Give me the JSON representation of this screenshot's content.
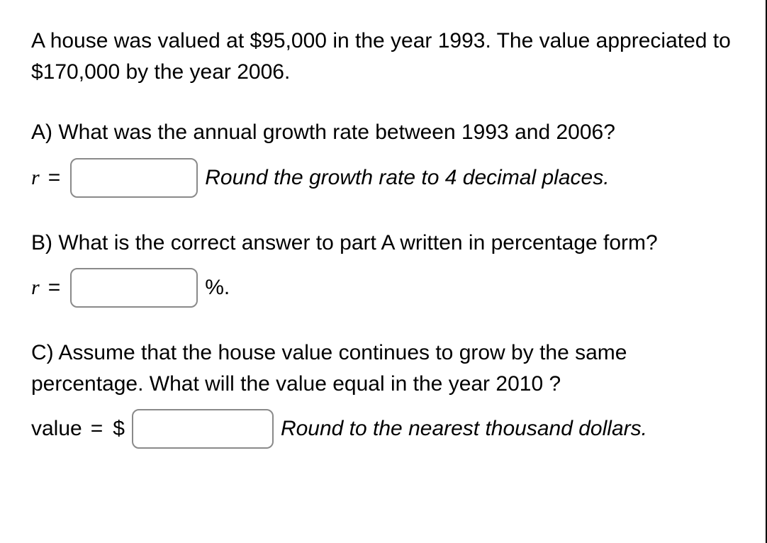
{
  "intro": "A house was valued at $95,000 in the year 1993. The value appreciated to $170,000 by the year 2006.",
  "partA": {
    "question": "A) What was the annual growth rate between 1993 and 2006?",
    "var": "r",
    "equals": "=",
    "value": "",
    "hint": "Round the growth rate to 4 decimal places."
  },
  "partB": {
    "question": "B) What is the correct answer to part A written in percentage form?",
    "var": "r",
    "equals": "=",
    "value": "",
    "unit": "%."
  },
  "partC": {
    "question": "C) Assume that the house value continues to grow by the same percentage. What will the value equal in the year 2010 ?",
    "label": "value",
    "equals": "=",
    "prefix": "$",
    "value": "",
    "hint": "Round to the nearest thousand dollars."
  },
  "style": {
    "font_size_body": 30,
    "text_color": "#000000",
    "background": "#ffffff",
    "input_border_color": "#8a8a8a",
    "input_border_radius": 10,
    "right_border_color": "#000000"
  }
}
